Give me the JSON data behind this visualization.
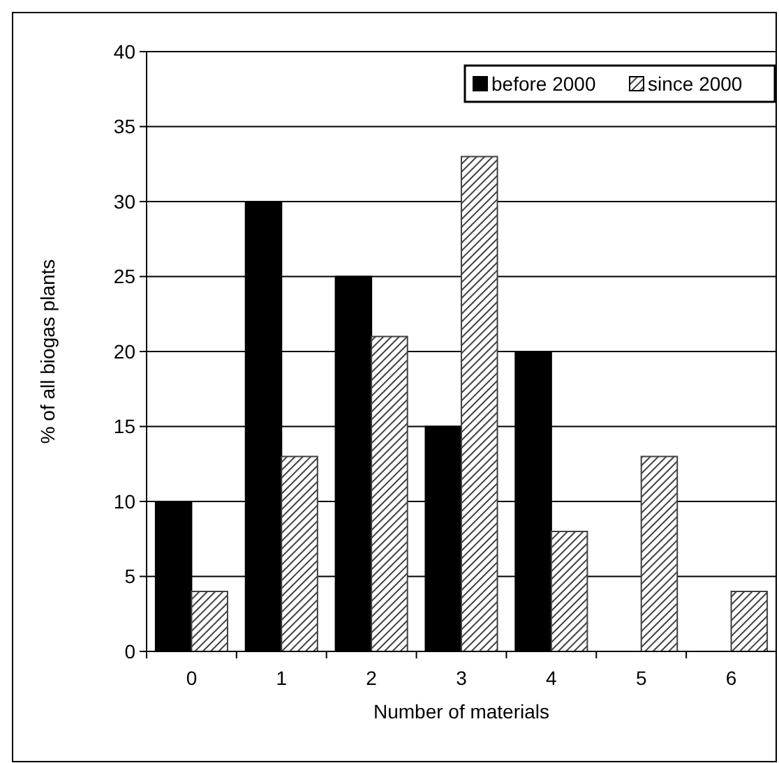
{
  "chart_data": {
    "type": "bar",
    "xlabel": "Number of materials",
    "ylabel": "% of all biogas plants",
    "categories": [
      "0",
      "1",
      "2",
      "3",
      "4",
      "5",
      "6"
    ],
    "series": [
      {
        "name": "before 2000",
        "color": "#000000",
        "values": [
          10,
          30,
          25,
          15,
          20,
          0,
          0
        ]
      },
      {
        "name": "since 2000",
        "color": "#404040",
        "values": [
          4,
          13,
          21,
          33,
          8,
          13,
          4
        ]
      }
    ],
    "ylim": [
      0,
      40
    ],
    "yticks": [
      0,
      5,
      10,
      15,
      20,
      25,
      30,
      35,
      40
    ],
    "grid": "y",
    "legend": "top right"
  }
}
